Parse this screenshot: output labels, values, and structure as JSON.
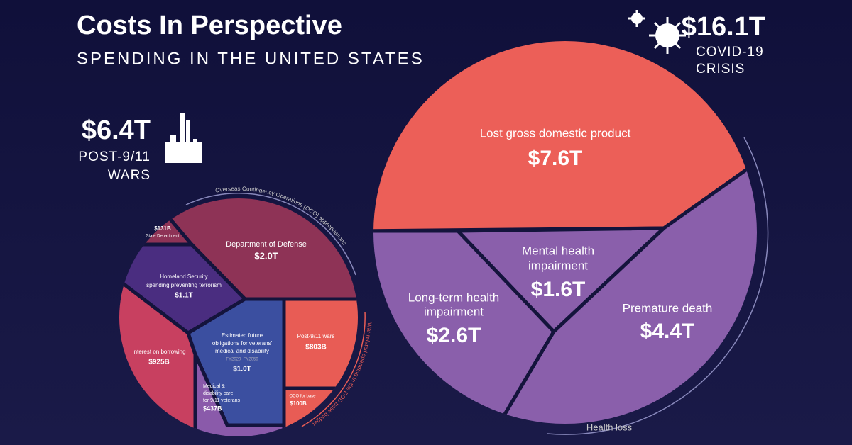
{
  "header": {
    "title": "Costs In Perspective",
    "subtitle": "SPENDING IN THE UNITED STATES"
  },
  "wars": {
    "total": "$6.4T",
    "label": [
      "POST-9/11",
      "WARS"
    ],
    "arc_top": "Overseas Contingency Operations (OCO) appropriations",
    "arc_right": "War-related spending in the DOD base budget",
    "cells": [
      {
        "value": "$131B",
        "label": [
          "State Department"
        ]
      },
      {
        "value": "$2.0T",
        "label": [
          "Department of Defense"
        ]
      },
      {
        "value": "$1.1T",
        "label": [
          "Homeland Security",
          "spending preventing terrorism"
        ]
      },
      {
        "value": "$925B",
        "label": [
          "Interest on borrowing"
        ]
      },
      {
        "value": "$1.0T",
        "label": [
          "Estimated future",
          "obligations for veterans'",
          "medical and disability"
        ],
        "note": "FY2020–FY2059"
      },
      {
        "value": "$803B",
        "label": [
          "Post-9/11 wars"
        ]
      },
      {
        "value": "$437B",
        "label": [
          "Medical &",
          "disability care",
          "for 9/11 veterans"
        ]
      },
      {
        "value": "$100B",
        "label": [
          "OCO for base"
        ]
      }
    ]
  },
  "covid": {
    "total": "$16.1T",
    "label": [
      "COVID-19",
      "CRISIS"
    ],
    "arc": "Health loss",
    "cells": [
      {
        "value": "$7.6T",
        "label": [
          "Lost gross domestic product"
        ]
      },
      {
        "value": "$1.6T",
        "label": [
          "Mental health",
          "impairment"
        ]
      },
      {
        "value": "$2.6T",
        "label": [
          "Long-term health",
          "impairment"
        ]
      },
      {
        "value": "$4.4T",
        "label": [
          "Premature death"
        ]
      }
    ]
  }
}
